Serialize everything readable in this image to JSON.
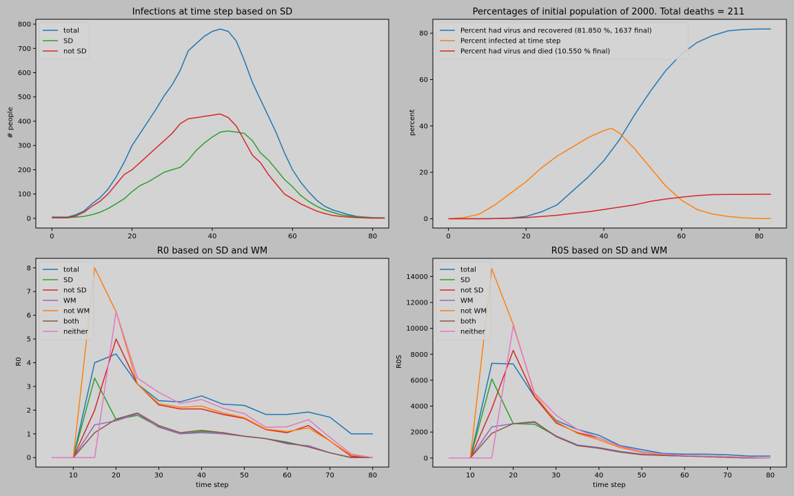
{
  "chart_data": [
    {
      "type": "line",
      "title": "Infections at time step based on SD",
      "xlabel": "",
      "ylabel": "# people",
      "xlim": [
        -4,
        84
      ],
      "ylim": [
        -40,
        820
      ],
      "xticks": [
        0,
        20,
        40,
        60,
        80
      ],
      "yticks": [
        0,
        100,
        200,
        300,
        400,
        500,
        600,
        700,
        800
      ],
      "legend_position": "top-left",
      "series": [
        {
          "name": "total",
          "color": "#1f77b4",
          "x": [
            0,
            4,
            6,
            8,
            10,
            12,
            14,
            16,
            18,
            20,
            22,
            24,
            26,
            28,
            30,
            32,
            34,
            36,
            38,
            40,
            42,
            44,
            46,
            48,
            50,
            52,
            54,
            56,
            58,
            60,
            62,
            64,
            66,
            68,
            70,
            72,
            74,
            76,
            78,
            80,
            83
          ],
          "y": [
            5,
            5,
            15,
            30,
            60,
            85,
            120,
            170,
            230,
            300,
            350,
            400,
            450,
            505,
            550,
            610,
            690,
            720,
            750,
            770,
            780,
            770,
            730,
            650,
            560,
            490,
            420,
            350,
            270,
            200,
            150,
            110,
            75,
            50,
            35,
            25,
            15,
            8,
            5,
            3,
            2
          ]
        },
        {
          "name": "SD",
          "color": "#2ca02c",
          "x": [
            0,
            4,
            6,
            8,
            10,
            12,
            14,
            16,
            18,
            20,
            22,
            24,
            26,
            28,
            30,
            32,
            34,
            36,
            38,
            40,
            42,
            44,
            46,
            48,
            50,
            52,
            54,
            56,
            58,
            60,
            62,
            64,
            66,
            68,
            70,
            72,
            74,
            76,
            78,
            80,
            83
          ],
          "y": [
            3,
            3,
            5,
            8,
            15,
            25,
            40,
            60,
            80,
            110,
            135,
            150,
            170,
            190,
            200,
            210,
            240,
            280,
            310,
            335,
            355,
            360,
            355,
            350,
            320,
            270,
            240,
            200,
            160,
            130,
            95,
            70,
            50,
            35,
            25,
            15,
            10,
            6,
            4,
            2,
            1
          ]
        },
        {
          "name": "not SD",
          "color": "#d62728",
          "x": [
            0,
            4,
            6,
            8,
            10,
            12,
            14,
            16,
            18,
            20,
            22,
            24,
            26,
            28,
            30,
            32,
            34,
            36,
            38,
            40,
            42,
            44,
            46,
            48,
            50,
            52,
            54,
            56,
            58,
            60,
            62,
            64,
            66,
            68,
            70,
            72,
            74,
            76,
            78,
            80,
            83
          ],
          "y": [
            2,
            2,
            10,
            25,
            50,
            70,
            100,
            140,
            180,
            200,
            230,
            260,
            290,
            320,
            350,
            390,
            410,
            415,
            420,
            425,
            430,
            415,
            380,
            320,
            260,
            230,
            180,
            140,
            100,
            80,
            60,
            45,
            30,
            20,
            12,
            8,
            5,
            3,
            2,
            1,
            1
          ]
        }
      ]
    },
    {
      "type": "line",
      "title": "Percentages of initial population of 2000. Total deaths = 211",
      "xlabel": "",
      "ylabel": "percent",
      "xlim": [
        -4,
        87
      ],
      "ylim": [
        -4,
        86
      ],
      "xticks": [
        0,
        20,
        40,
        60,
        80
      ],
      "yticks": [
        0,
        20,
        40,
        60,
        80
      ],
      "legend_position": "top-left",
      "series": [
        {
          "name": "Percent had virus and recovered (81.850 %, 1637 final)",
          "color": "#1f77b4",
          "x": [
            0,
            10,
            16,
            20,
            24,
            28,
            32,
            36,
            40,
            44,
            48,
            52,
            56,
            60,
            64,
            68,
            72,
            76,
            80,
            83
          ],
          "y": [
            0,
            0,
            0.3,
            1,
            3,
            6,
            12,
            18,
            25,
            34,
            45,
            55,
            64,
            71,
            76,
            79,
            81,
            81.6,
            81.8,
            81.85
          ]
        },
        {
          "name": "Percent infected at time step",
          "color": "#ff7f0e",
          "x": [
            0,
            4,
            8,
            12,
            16,
            20,
            24,
            28,
            32,
            36,
            40,
            42,
            44,
            48,
            52,
            56,
            60,
            64,
            68,
            72,
            76,
            80,
            83
          ],
          "y": [
            0,
            0.5,
            2,
            6,
            11,
            16,
            22,
            27,
            31,
            35,
            38,
            39,
            37,
            30,
            22,
            14,
            8,
            4,
            2,
            1,
            0.4,
            0.1,
            0.1
          ]
        },
        {
          "name": "Percent had virus and died (10.550 % final)",
          "color": "#d62728",
          "x": [
            0,
            10,
            16,
            20,
            24,
            28,
            32,
            36,
            40,
            44,
            48,
            52,
            56,
            60,
            64,
            68,
            72,
            76,
            80,
            83
          ],
          "y": [
            0,
            0,
            0.2,
            0.5,
            1,
            1.5,
            2.3,
            3,
            4,
            5,
            6,
            7.5,
            8.5,
            9.3,
            10,
            10.4,
            10.5,
            10.5,
            10.55,
            10.55
          ]
        }
      ]
    },
    {
      "type": "line",
      "title": "R0 based on SD and WM",
      "xlabel": "time step",
      "ylabel": "R0",
      "xlim": [
        1.25,
        83.75
      ],
      "ylim": [
        -0.4,
        8.4
      ],
      "xticks": [
        10,
        20,
        30,
        40,
        50,
        60,
        70,
        80
      ],
      "yticks": [
        0,
        1,
        2,
        3,
        4,
        5,
        6,
        7,
        8
      ],
      "legend_position": "top-left",
      "x": [
        5,
        10,
        15,
        20,
        25,
        30,
        35,
        40,
        45,
        50,
        55,
        60,
        65,
        70,
        75,
        80
      ],
      "series": [
        {
          "name": "total",
          "color": "#1f77b4",
          "values": [
            0,
            0,
            4.0,
            4.37,
            3.1,
            2.4,
            2.35,
            2.6,
            2.25,
            2.2,
            1.82,
            1.82,
            1.92,
            1.7,
            1.0,
            1.0
          ]
        },
        {
          "name": "SD",
          "color": "#2ca02c",
          "values": [
            0,
            0,
            3.35,
            1.6,
            1.78,
            1.3,
            1.0,
            1.1,
            1.05,
            0.9,
            0.8,
            0.65,
            0.45,
            0.2,
            0,
            0
          ]
        },
        {
          "name": "not SD",
          "color": "#d62728",
          "values": [
            0,
            0,
            2.0,
            5.0,
            3.1,
            2.22,
            2.05,
            2.05,
            1.82,
            1.65,
            1.18,
            1.05,
            1.35,
            0.7,
            0.05,
            0
          ]
        },
        {
          "name": "WM",
          "color": "#9467bd",
          "values": [
            0,
            0,
            1.38,
            1.55,
            1.85,
            1.28,
            1.0,
            1.05,
            1.0,
            0.9,
            0.8,
            0.58,
            0.5,
            0.2,
            0,
            0
          ]
        },
        {
          "name": "not WM",
          "color": "#ff7f0e",
          "values": [
            0,
            0,
            8.0,
            6.15,
            3.1,
            2.27,
            2.12,
            2.17,
            1.88,
            1.68,
            1.2,
            1.1,
            1.25,
            0.7,
            0.1,
            0
          ]
        },
        {
          "name": "both",
          "color": "#8c564b",
          "values": [
            0,
            0,
            1.05,
            1.62,
            1.88,
            1.35,
            1.05,
            1.15,
            1.05,
            0.9,
            0.8,
            0.62,
            0.45,
            0.2,
            0,
            0
          ]
        },
        {
          "name": "neither",
          "color": "#e377c2",
          "values": [
            0,
            0,
            0,
            6.15,
            3.35,
            2.75,
            2.28,
            2.45,
            2.08,
            1.85,
            1.28,
            1.3,
            1.6,
            0.85,
            0.15,
            0
          ]
        }
      ]
    },
    {
      "type": "line",
      "title": "R0S based on SD and WM",
      "xlabel": "time step",
      "ylabel": "R0S",
      "xlim": [
        1.25,
        83.75
      ],
      "ylim": [
        -700,
        15400
      ],
      "xticks": [
        10,
        20,
        30,
        40,
        50,
        60,
        70,
        80
      ],
      "yticks": [
        0,
        2000,
        4000,
        6000,
        8000,
        10000,
        12000,
        14000
      ],
      "legend_position": "top-left",
      "x": [
        5,
        10,
        15,
        20,
        25,
        30,
        35,
        40,
        45,
        50,
        55,
        60,
        65,
        70,
        75,
        80
      ],
      "series": [
        {
          "name": "total",
          "color": "#1f77b4",
          "values": [
            0,
            0,
            7300,
            7250,
            4700,
            2900,
            2200,
            1750,
            950,
            650,
            350,
            300,
            300,
            250,
            150,
            150
          ]
        },
        {
          "name": "SD",
          "color": "#2ca02c",
          "values": [
            0,
            0,
            6100,
            2650,
            2600,
            1700,
            1000,
            800,
            500,
            300,
            200,
            150,
            100,
            50,
            0,
            0
          ]
        },
        {
          "name": "not SD",
          "color": "#d62728",
          "values": [
            0,
            0,
            3800,
            8300,
            4700,
            2700,
            1950,
            1550,
            900,
            450,
            250,
            200,
            150,
            100,
            50,
            0
          ]
        },
        {
          "name": "WM",
          "color": "#9467bd",
          "values": [
            0,
            0,
            2400,
            2650,
            2750,
            1700,
            1000,
            800,
            500,
            300,
            200,
            150,
            100,
            50,
            0,
            0
          ]
        },
        {
          "name": "not WM",
          "color": "#ff7f0e",
          "values": [
            0,
            0,
            14600,
            10300,
            4900,
            2800,
            1900,
            1400,
            800,
            450,
            250,
            200,
            150,
            100,
            50,
            0
          ]
        },
        {
          "name": "both",
          "color": "#8c564b",
          "values": [
            0,
            0,
            1900,
            2650,
            2800,
            1650,
            950,
            750,
            450,
            250,
            200,
            150,
            100,
            50,
            0,
            0
          ]
        },
        {
          "name": "neither",
          "color": "#e377c2",
          "values": [
            0,
            0,
            0,
            10200,
            5000,
            3300,
            2200,
            1550,
            900,
            500,
            300,
            200,
            150,
            100,
            50,
            0
          ]
        }
      ]
    }
  ]
}
